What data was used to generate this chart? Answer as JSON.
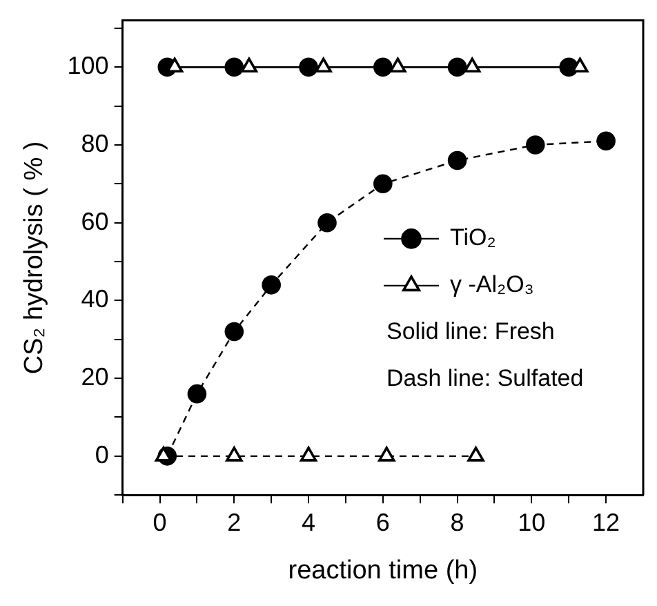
{
  "chart_data": {
    "type": "line",
    "xlabel": "reaction time (h)",
    "ylabel": "CS₂ hydrolysis ( % )",
    "xlim": [
      -1,
      13
    ],
    "ylim": [
      -10,
      112
    ],
    "xticks": [
      {
        "value": -1,
        "label": null
      },
      0,
      {
        "value": 1,
        "label": null
      },
      2,
      {
        "value": 3,
        "label": null
      },
      4,
      {
        "value": 5,
        "label": null
      },
      6,
      {
        "value": 7,
        "label": null
      },
      8,
      {
        "value": 9,
        "label": null
      },
      10,
      {
        "value": 11,
        "label": null
      },
      12
    ],
    "yticks": [
      {
        "value": -10,
        "label": null
      },
      0,
      {
        "value": 10,
        "label": null
      },
      20,
      {
        "value": 30,
        "label": null
      },
      40,
      {
        "value": 50,
        "label": null
      },
      60,
      {
        "value": 70,
        "label": null
      },
      80,
      {
        "value": 90,
        "label": null
      },
      100,
      {
        "value": 110,
        "label": null
      }
    ],
    "grid": false,
    "legend": "right",
    "series": [
      {
        "name": "TiO₂",
        "color": "#000000",
        "marker": "circle",
        "line_style": "solid",
        "x": [
          0.2,
          2,
          4,
          6,
          8,
          11
        ],
        "values": [
          100,
          100,
          100,
          100,
          100,
          100
        ]
      },
      {
        "name": "γ -Al₂O₃",
        "color": "#000000",
        "marker": "triangle",
        "line_style": "solid",
        "x": [
          0.4,
          2.4,
          4.4,
          6.4,
          8.4,
          11.3
        ],
        "values": [
          100,
          100,
          100,
          100,
          100,
          100
        ]
      },
      {
        "color": "#000000",
        "marker": "circle",
        "line_style": "dashed",
        "x": [
          0.2,
          1,
          2,
          3,
          4.5,
          6,
          8,
          10.1,
          12
        ],
        "values": [
          0,
          16,
          32,
          44,
          60,
          70,
          76,
          80,
          81
        ]
      },
      {
        "color": "#000000",
        "marker": "triangle",
        "line_style": "dashed",
        "x": [
          0.1,
          2,
          4,
          6.1,
          8.5
        ],
        "values": [
          0,
          0,
          0,
          0,
          0
        ]
      }
    ],
    "annotations": [
      "Solid line: Fresh",
      "Dash line: Sulfated"
    ]
  }
}
